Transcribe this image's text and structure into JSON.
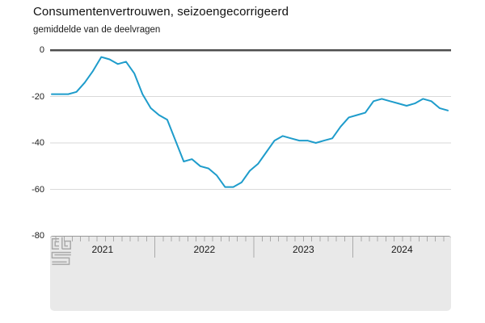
{
  "header": {
    "title": "Consumentenvertrouwen, seizoengecorrigeerd",
    "subtitle": "gemiddelde van de deelvragen"
  },
  "chart_data": {
    "type": "line",
    "title": "Consumentenvertrouwen, seizoengecorrigeerd",
    "subtitle": "gemiddelde van de deelvragen",
    "x_frequency": "monthly",
    "x_start": "2020-12",
    "x_end": "2024-12",
    "x_year_labels": [
      "2021",
      "2022",
      "2023",
      "2024"
    ],
    "ylim": [
      -80,
      0
    ],
    "yticks": [
      "0",
      "-20",
      "-40",
      "-60",
      "-80"
    ],
    "grid": true,
    "legend_position": "none",
    "series": [
      {
        "name": "Consumentenvertrouwen, seizoengecorrigeerd (gemiddelde van de deelvragen)",
        "color": "#1e9ccb",
        "values": [
          -19,
          -19,
          -19,
          -18,
          -14,
          -9,
          -3,
          -4,
          -6,
          -5,
          -10,
          -19,
          -25,
          -28,
          -30,
          -39,
          -48,
          -47,
          -50,
          -51,
          -54,
          -59,
          -59,
          -57,
          -52,
          -49,
          -44,
          -39,
          -37,
          -38,
          -39,
          -39,
          -40,
          -39,
          -38,
          -33,
          -29,
          -28,
          -27,
          -22,
          -21,
          -22,
          -23,
          -24,
          -23,
          -21,
          -22,
          -25,
          -26
        ]
      }
    ]
  },
  "colors": {
    "line": "#1e9ccb",
    "zero_axis": "#4d4d4d",
    "gridline": "#d9d9d9",
    "band_background": "#e9e9e9",
    "band_border": "#999999",
    "tick": "#aaaaaa",
    "text": "#1a1a1a",
    "logo": "#a9a9a9"
  },
  "footer": {
    "logo": "cbs-logo"
  }
}
